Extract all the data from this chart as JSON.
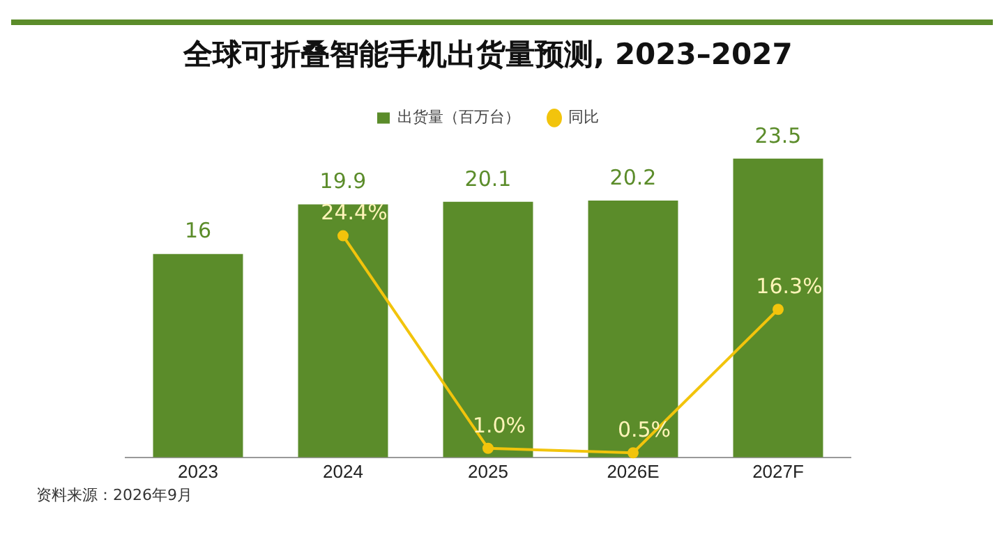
{
  "chart_data": {
    "type": "bar",
    "title": "全球可折叠智能手机出货量预测, 2023–2027",
    "categories": [
      "2023",
      "2024",
      "2025",
      "2026E",
      "2027F"
    ],
    "series": [
      {
        "name": "出货量（百万台）",
        "type": "bar",
        "color": "#5b8c2a",
        "values": [
          16,
          19.9,
          20.1,
          20.2,
          23.5
        ],
        "value_labels": [
          "16",
          "19.9",
          "20.1",
          "20.2",
          "23.5"
        ]
      },
      {
        "name": "同比",
        "type": "line",
        "axis": "y2",
        "color": "#f2c40c",
        "marker": "circle",
        "values": [
          null,
          24.4,
          1.0,
          0.5,
          16.3
        ],
        "value_labels": [
          null,
          "24.4%",
          "1.0%",
          "0.5%",
          "16.3%"
        ]
      }
    ],
    "legend": "top",
    "tick_labels": "x",
    "annotations": [
      "资料来源：2026年9月"
    ]
  }
}
